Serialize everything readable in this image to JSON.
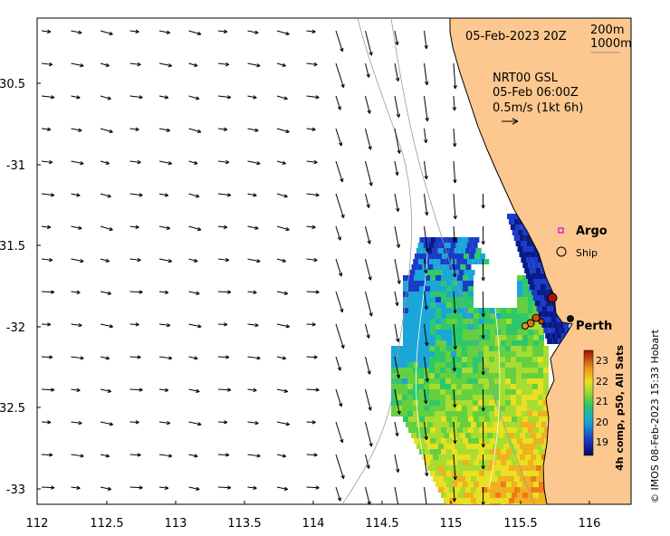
{
  "map": {
    "datetime": "05-Feb-2023 20Z",
    "contours": [
      "200m",
      "1000m"
    ],
    "current_label": [
      "NRT00 GSL",
      "05-Feb 06:00Z",
      "0.5m/s (1kt 6h)"
    ],
    "legend": {
      "argo": "Argo",
      "ship": "Ship"
    },
    "place": "Perth",
    "credit": "© IMOS 08-Feb-2023 15:33 Hobart",
    "colorbar": {
      "title": "4h comp, p50, All Sats",
      "ticks": [
        "23",
        "22",
        "21",
        "20",
        "19"
      ]
    },
    "x_ticks": [
      "112",
      "112.5",
      "113",
      "113.5",
      "114",
      "114.5",
      "115",
      "115.5",
      "116"
    ],
    "y_ticks": [
      "-30.5",
      "-31",
      "-31.5",
      "-32",
      "-32.5",
      "-33"
    ]
  }
}
